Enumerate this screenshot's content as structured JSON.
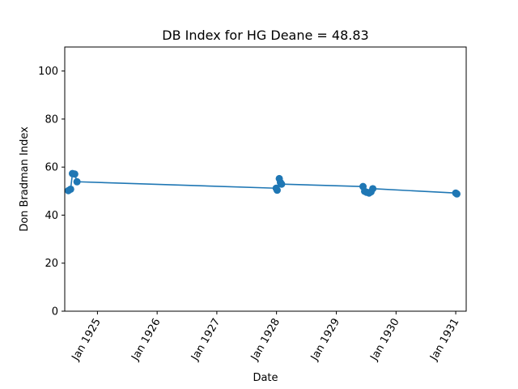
{
  "chart_data": {
    "type": "line",
    "title": "DB Index for HG Deane = 48.83",
    "xlabel": "Date",
    "ylabel": "Don Bradman Index",
    "ylim": [
      0,
      110
    ],
    "xlim": [
      "1924-06-15",
      "1931-03-06"
    ],
    "yticks": [
      0,
      20,
      40,
      60,
      80,
      100
    ],
    "xticks": [
      {
        "date": "1925-01-01",
        "label": "Jan 1925"
      },
      {
        "date": "1926-01-01",
        "label": "Jan 1926"
      },
      {
        "date": "1927-01-01",
        "label": "Jan 1927"
      },
      {
        "date": "1928-01-01",
        "label": "Jan 1928"
      },
      {
        "date": "1929-01-01",
        "label": "Jan 1929"
      },
      {
        "date": "1930-01-01",
        "label": "Jan 1930"
      },
      {
        "date": "1931-01-01",
        "label": "Jan 1931"
      }
    ],
    "grid": false,
    "color": "#1f77b4",
    "marker": "circle",
    "series": [
      {
        "points": [
          {
            "x": "1924-07-07",
            "y": 50.2
          },
          {
            "x": "1924-07-21",
            "y": 50.8
          },
          {
            "x": "1924-08-01",
            "y": 57.3
          },
          {
            "x": "1924-08-15",
            "y": 57.1
          },
          {
            "x": "1924-08-29",
            "y": 53.9
          },
          {
            "x": "1927-12-30",
            "y": 51.2
          },
          {
            "x": "1928-01-05",
            "y": 50.4
          },
          {
            "x": "1928-01-18",
            "y": 55.2
          },
          {
            "x": "1928-01-25",
            "y": 53.6
          },
          {
            "x": "1928-02-01",
            "y": 52.9
          },
          {
            "x": "1929-06-13",
            "y": 51.9
          },
          {
            "x": "1929-06-23",
            "y": 49.9
          },
          {
            "x": "1929-07-05",
            "y": 49.5
          },
          {
            "x": "1929-07-20",
            "y": 49.2
          },
          {
            "x": "1929-08-01",
            "y": 49.7
          },
          {
            "x": "1929-08-12",
            "y": 51.0
          },
          {
            "x": "1931-01-01",
            "y": 49.2
          },
          {
            "x": "1931-01-08",
            "y": 48.83
          }
        ]
      }
    ]
  }
}
